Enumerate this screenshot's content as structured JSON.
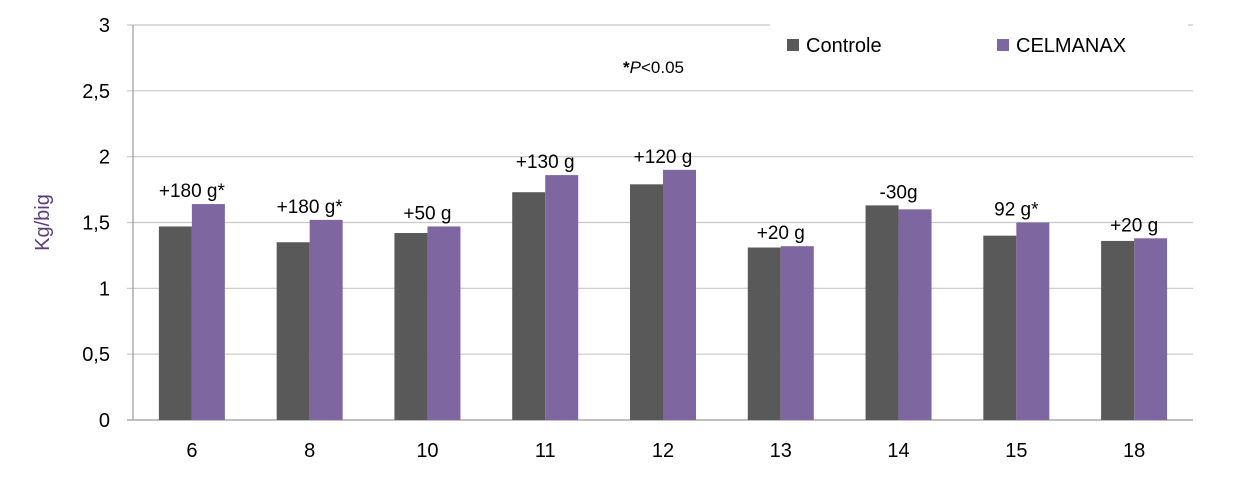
{
  "chart_data": {
    "type": "bar",
    "categories": [
      "6",
      "8",
      "10",
      "11",
      "12",
      "13",
      "14",
      "15",
      "18"
    ],
    "series": [
      {
        "name": "Controle",
        "color": "#595959",
        "values": [
          1.47,
          1.35,
          1.42,
          1.73,
          1.79,
          1.31,
          1.63,
          1.4,
          1.36
        ]
      },
      {
        "name": "CELMANAX",
        "color": "#7e67a1",
        "values": [
          1.64,
          1.52,
          1.47,
          1.86,
          1.9,
          1.32,
          1.6,
          1.5,
          1.38
        ]
      }
    ],
    "annotations": [
      "+180 g*",
      "+180 g*",
      "+50 g",
      "+130 g",
      "+120 g",
      "+20 g",
      "-30g",
      "92 g*",
      "+20 g"
    ],
    "significance_note": {
      "star": "*",
      "text": "P",
      "suffix": "<0.05"
    },
    "ylabel": "Kg/big",
    "ylabel_color": "#5b3d7c",
    "yticks": [
      "0",
      "0,5",
      "1",
      "1,5",
      "2",
      "2,5",
      "3"
    ],
    "ylim": [
      0,
      3
    ],
    "grid": true,
    "legend_position": "top-right"
  }
}
